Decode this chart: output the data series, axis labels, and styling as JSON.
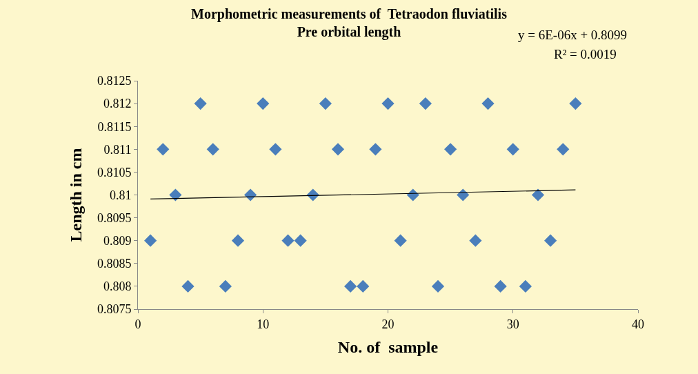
{
  "chart_data": {
    "type": "scatter",
    "title": "Morphometric measurements of  Tetraodon fluviatilis\nPre orbital length",
    "xlabel": "No. of  sample",
    "ylabel": "Length in cm",
    "annotations": [
      "y = 6E-06x + 0.8099",
      "R² = 0.0019"
    ],
    "x": [
      1,
      2,
      3,
      4,
      5,
      6,
      7,
      8,
      9,
      10,
      11,
      12,
      13,
      14,
      15,
      16,
      17,
      18,
      19,
      20,
      21,
      22,
      23,
      24,
      25,
      26,
      27,
      28,
      29,
      30,
      31,
      32,
      33,
      34,
      35
    ],
    "series": [
      {
        "color": "#4a7ebb",
        "marker": "diamond",
        "values": [
          0.809,
          0.811,
          0.81,
          0.808,
          0.812,
          0.811,
          0.808,
          0.809,
          0.81,
          0.812,
          0.811,
          0.809,
          0.809,
          0.81,
          0.812,
          0.811,
          0.808,
          0.808,
          0.811,
          0.812,
          0.809,
          0.81,
          0.812,
          0.808,
          0.811,
          0.81,
          0.809,
          0.812,
          0.808,
          0.811,
          0.808,
          0.81,
          0.809,
          0.811,
          0.812
        ]
      },
      {
        "type": "line",
        "color": "#000000",
        "x": [
          1,
          35
        ],
        "values": [
          0.80991,
          0.81011
        ]
      }
    ],
    "xlim": [
      0,
      40
    ],
    "xticks": [
      0,
      10,
      20,
      30,
      40
    ],
    "ylim": [
      0.8075,
      0.8125
    ],
    "yticks": [
      0.8075,
      0.808,
      0.8085,
      0.809,
      0.8095,
      0.81,
      0.8105,
      0.811,
      0.8115,
      0.812,
      0.8125
    ],
    "grid": false,
    "legend": false
  }
}
